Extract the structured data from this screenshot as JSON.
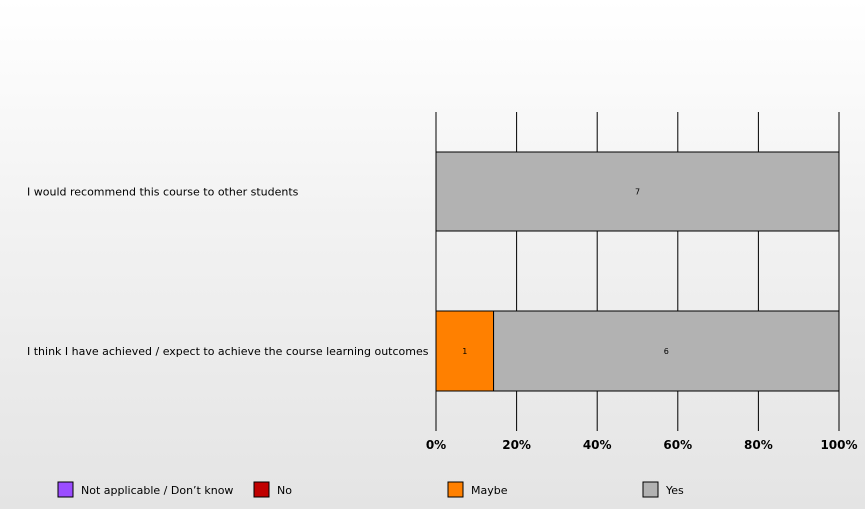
{
  "chart_data": {
    "type": "bar",
    "orientation": "horizontal",
    "stacked": "percent",
    "categories": [
      "I would recommend this course to other students",
      "I think I have achieved / expect to achieve the course learning outcomes"
    ],
    "series": [
      {
        "name": "Not applicable / Don’t know",
        "color": "#9b4dff",
        "values": [
          0,
          0
        ]
      },
      {
        "name": "No",
        "color": "#c00000",
        "values": [
          0,
          0
        ]
      },
      {
        "name": "Maybe",
        "color": "#ff8000",
        "values": [
          0,
          1
        ]
      },
      {
        "name": "Yes",
        "color": "#b2b2b2",
        "values": [
          7,
          6
        ]
      }
    ],
    "xticks": [
      "0%",
      "20%",
      "40%",
      "60%",
      "80%",
      "100%"
    ],
    "xlim": [
      0,
      100
    ],
    "grid": true,
    "legend_position": "bottom"
  }
}
